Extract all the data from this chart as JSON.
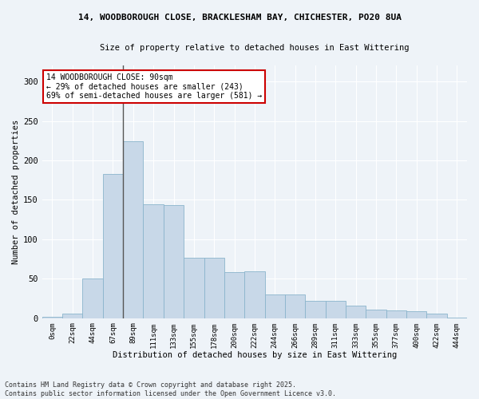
{
  "title1": "14, WOODBOROUGH CLOSE, BRACKLESHAM BAY, CHICHESTER, PO20 8UA",
  "title2": "Size of property relative to detached houses in East Wittering",
  "xlabel": "Distribution of detached houses by size in East Wittering",
  "ylabel": "Number of detached properties",
  "bar_color": "#c8d8e8",
  "bar_edge_color": "#8ab4cc",
  "vline_color": "#555555",
  "annotation_box_color": "#cc0000",
  "annotation_text": "14 WOODBOROUGH CLOSE: 90sqm\n← 29% of detached houses are smaller (243)\n69% of semi-detached houses are larger (581) →",
  "categories": [
    "0sqm",
    "22sqm",
    "44sqm",
    "67sqm",
    "89sqm",
    "111sqm",
    "133sqm",
    "155sqm",
    "178sqm",
    "200sqm",
    "222sqm",
    "244sqm",
    "266sqm",
    "289sqm",
    "311sqm",
    "333sqm",
    "355sqm",
    "377sqm",
    "400sqm",
    "422sqm",
    "444sqm"
  ],
  "values": [
    2,
    6,
    50,
    183,
    224,
    144,
    143,
    77,
    77,
    58,
    59,
    30,
    30,
    22,
    22,
    16,
    11,
    10,
    9,
    6,
    1
  ],
  "ylim": [
    0,
    320
  ],
  "yticks": [
    0,
    50,
    100,
    150,
    200,
    250,
    300
  ],
  "footer": "Contains HM Land Registry data © Crown copyright and database right 2025.\nContains public sector information licensed under the Open Government Licence v3.0.",
  "bg_color": "#eef3f8"
}
